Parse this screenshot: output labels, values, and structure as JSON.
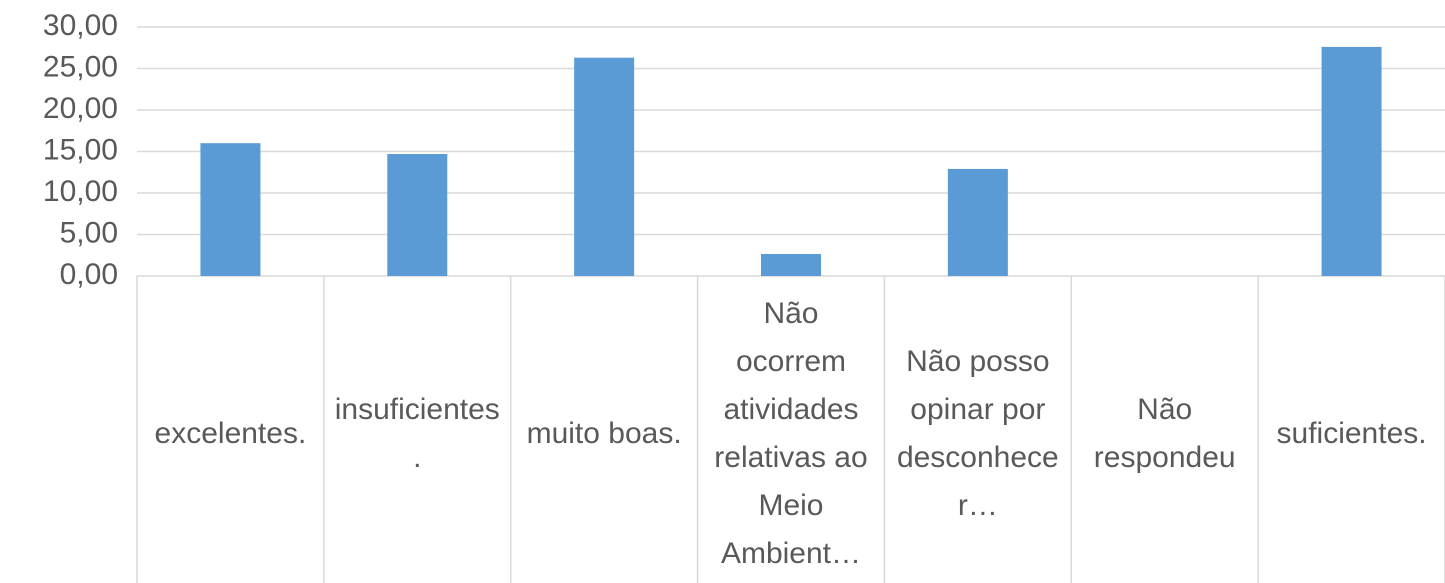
{
  "chart_data": {
    "type": "bar",
    "categories": [
      "excelentes.",
      "insuficientes.",
      "muito boas.",
      "Não ocorrem atividades relativas ao Meio Ambient…",
      "Não posso opinar por desconhecer…",
      "Não respondeu",
      "suficientes."
    ],
    "values": [
      16.0,
      14.7,
      26.3,
      2.65,
      12.9,
      0,
      27.6
    ],
    "color": "#5b9bd5",
    "ylim": [
      0,
      30
    ],
    "yticks": [
      {
        "value": 0,
        "label": "0,00"
      },
      {
        "value": 5,
        "label": "5,00"
      },
      {
        "value": 10,
        "label": "10,00"
      },
      {
        "value": 15,
        "label": "15,00"
      },
      {
        "value": 20,
        "label": "20,00"
      },
      {
        "value": 25,
        "label": "25,00"
      },
      {
        "value": 30,
        "label": "30,00"
      }
    ],
    "grid": true
  }
}
